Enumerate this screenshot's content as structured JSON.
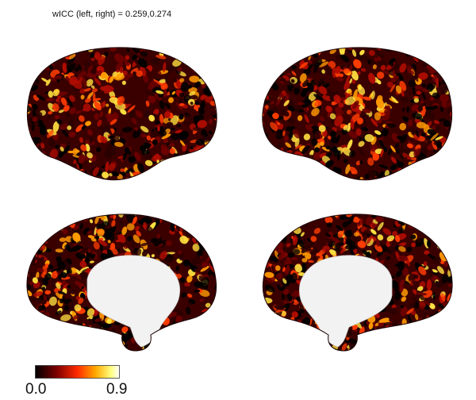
{
  "figure": {
    "title": "wICC (left, right) = 0.259,0.274",
    "views": [
      {
        "id": "left-lateral",
        "hemisphere": "left",
        "view": "lateral"
      },
      {
        "id": "right-lateral",
        "hemisphere": "right",
        "view": "lateral"
      },
      {
        "id": "left-medial",
        "hemisphere": "left",
        "view": "medial"
      },
      {
        "id": "right-medial",
        "hemisphere": "right",
        "view": "medial"
      }
    ],
    "colormap": {
      "name": "hot",
      "stops": [
        "#000000",
        "#7a0000",
        "#ff2a00",
        "#ffaa00",
        "#ffff80",
        "#ffffff"
      ],
      "min_label": "0.0",
      "max_label": "0.9"
    },
    "medial_wall_color": "#f2f2f2"
  }
}
